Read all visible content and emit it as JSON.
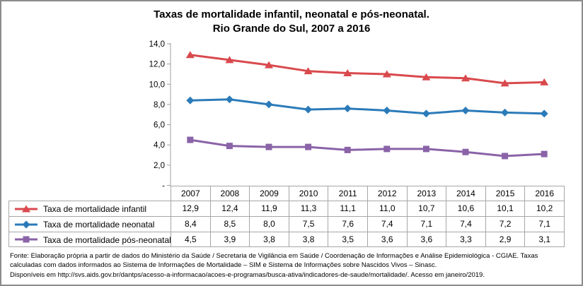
{
  "title": {
    "line1": "Taxas de mortalidade infantil, neonatal e pós-neonatal.",
    "line2": "Rio Grande do Sul, 2007 a 2016"
  },
  "chart_data": {
    "type": "line",
    "title": "Taxas de mortalidade infantil, neonatal e pós-neonatal. Rio Grande do Sul, 2007 a 2016",
    "categories": [
      "2007",
      "2008",
      "2009",
      "2010",
      "2011",
      "2012",
      "2013",
      "2014",
      "2015",
      "2016"
    ],
    "series": [
      {
        "name": "Taxa de mortalidade infantil",
        "marker": "triangle",
        "color": "#d9494d",
        "values": [
          12.9,
          12.4,
          11.9,
          11.3,
          11.1,
          11.0,
          10.7,
          10.6,
          10.1,
          10.2
        ]
      },
      {
        "name": "Taxa de mortalidade neonatal",
        "marker": "diamond",
        "color": "#2b7bb9",
        "values": [
          8.4,
          8.5,
          8.0,
          7.5,
          7.6,
          7.4,
          7.1,
          7.4,
          7.2,
          7.1
        ]
      },
      {
        "name": "Taxa de mortalidade pós-neonatal",
        "marker": "square",
        "color": "#8a63a8",
        "values": [
          4.5,
          3.9,
          3.8,
          3.8,
          3.5,
          3.6,
          3.6,
          3.3,
          2.9,
          3.1
        ]
      }
    ],
    "ylim": [
      0,
      14
    ],
    "ytick_step": 2,
    "ytick_labels": [
      "-",
      "2,0",
      "4,0",
      "6,0",
      "8,0",
      "10,0",
      "12,0",
      "14,0"
    ],
    "decimal_separator": ",",
    "grid": false,
    "legend_position": "table-left"
  },
  "footer": {
    "line1": "Fonte: Elaboração própria a partir de dados do Ministério da Saúde / Secretaria de Vigilância em Saúde / Coordenação de Informações e Análise Epidemiológica - CGIAE.  Taxas",
    "line2": "calculadas com  dados informados ao Sistema de Informações de Mortalidade – SIM e Sistema de Informações sobre Nascidos Vivos – Sinasc.",
    "line3": "Disponíveis em http://svs.aids.gov.br/dantps/acesso-a-informacao/acoes-e-programas/busca-ativa/indicadores-de-saude/mortalidade/. Acesso em janeiro/2019."
  },
  "colors": {
    "axis": "#a0a0a0",
    "table_border": "#a6a6a6",
    "figure_border": "#8c8c8c",
    "text": "#000000"
  }
}
